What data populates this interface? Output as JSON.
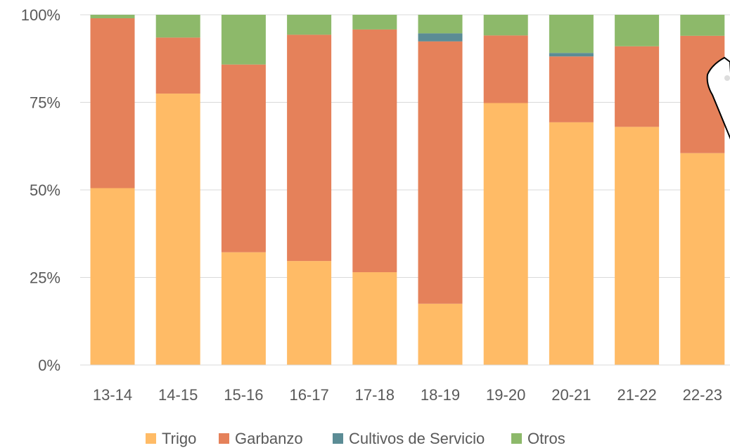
{
  "chart_data": {
    "type": "bar",
    "stacked": true,
    "categories": [
      "13-14",
      "14-15",
      "15-16",
      "16-17",
      "17-18",
      "18-19",
      "19-20",
      "20-21",
      "21-22",
      "22-23"
    ],
    "series": [
      {
        "name": "Trigo",
        "color": "#FFBB66",
        "values": [
          50.5,
          77.5,
          32.2,
          29.7,
          26.5,
          17.5,
          74.8,
          69.3,
          68.0,
          60.5
        ]
      },
      {
        "name": "Garbanzo",
        "color": "#E5815A",
        "values": [
          48.5,
          16.0,
          53.6,
          64.6,
          69.3,
          74.9,
          19.3,
          18.8,
          23.0,
          33.5
        ]
      },
      {
        "name": "Cultivos de Servicio",
        "color": "#5B8C95",
        "values": [
          0,
          0,
          0,
          0,
          0,
          2.3,
          0,
          1.0,
          0,
          0
        ]
      },
      {
        "name": "Otros",
        "color": "#8DB96A",
        "values": [
          1.0,
          6.5,
          14.2,
          5.7,
          4.2,
          5.3,
          5.9,
          10.9,
          9.0,
          6.0
        ]
      }
    ],
    "y_ticks": [
      "0%",
      "25%",
      "50%",
      "75%",
      "100%"
    ],
    "ylim": [
      0,
      100
    ],
    "grid": true,
    "legend_position": "bottom"
  }
}
